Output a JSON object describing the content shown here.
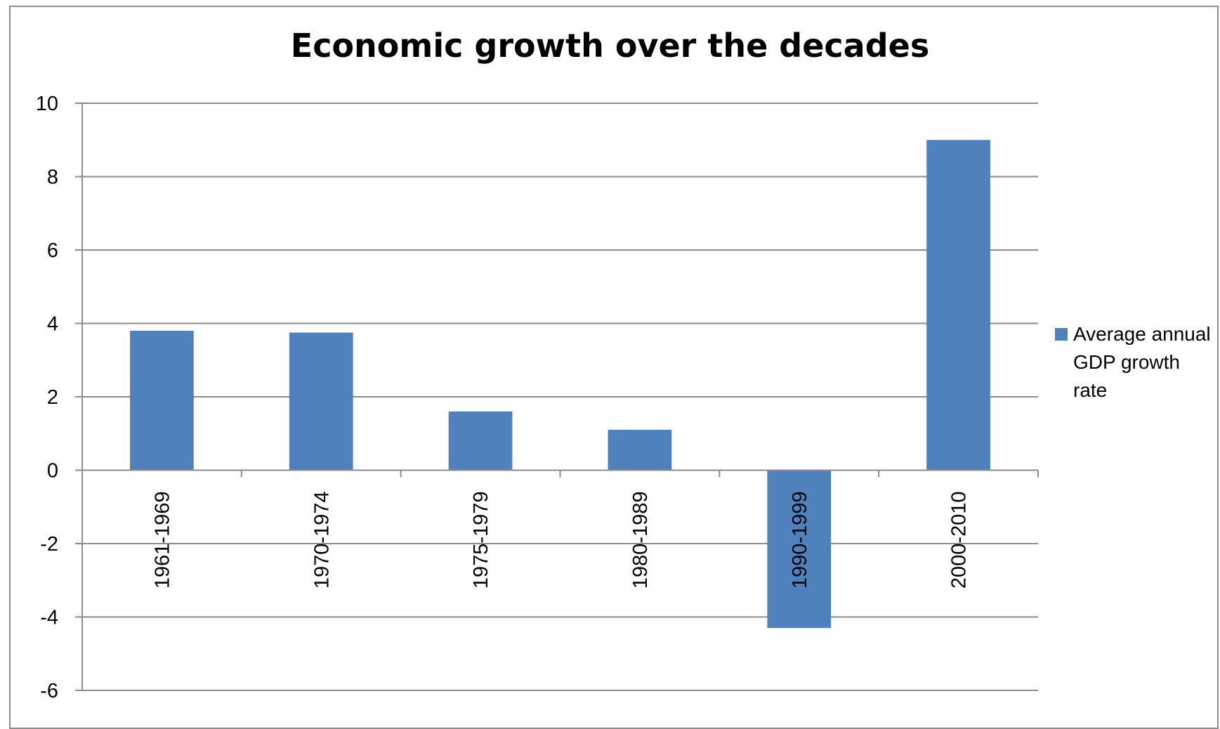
{
  "chart_data": {
    "type": "bar",
    "title": "Economic growth over the decades",
    "xlabel": "",
    "ylabel": "",
    "categories": [
      "1961-1969",
      "1970-1974",
      "1975-1979",
      "1980-1989",
      "1990-1999",
      "2000-2010"
    ],
    "series": [
      {
        "name": "Average annual GDP growth rate",
        "values": [
          3.8,
          3.75,
          1.6,
          1.1,
          -4.3,
          9.0
        ],
        "color": "#4f81bd"
      }
    ],
    "ylim": [
      -6,
      10
    ],
    "yticks": [
      10,
      8,
      6,
      4,
      2,
      0,
      -2,
      -4,
      -6
    ],
    "grid": true,
    "legend_position": "right"
  }
}
